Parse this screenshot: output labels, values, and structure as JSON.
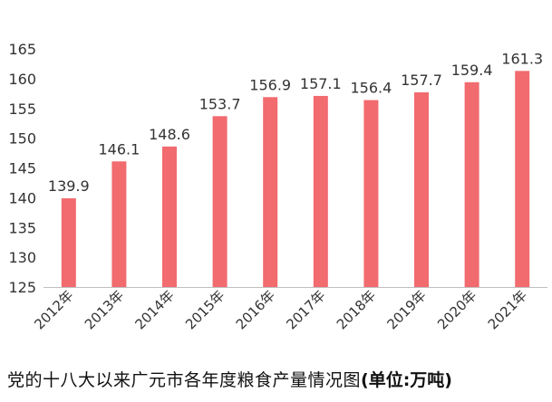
{
  "chart_data": {
    "type": "bar",
    "categories": [
      "2012年",
      "2013年",
      "2014年",
      "2015年",
      "2016年",
      "2017年",
      "2018年",
      "2019年",
      "2020年",
      "2021年"
    ],
    "values": [
      139.9,
      146.1,
      148.6,
      153.7,
      156.9,
      157.1,
      156.4,
      157.7,
      159.4,
      161.3
    ],
    "ylim": [
      125,
      165
    ],
    "yticks": [
      125,
      130,
      135,
      140,
      145,
      150,
      155,
      160,
      165
    ],
    "data_labels": true,
    "grid": false,
    "bar_color": "#f16b6f",
    "caption_main": "党的十八大以来广元市各年度粮食产量情况图",
    "caption_unit": "(单位:万吨)"
  }
}
